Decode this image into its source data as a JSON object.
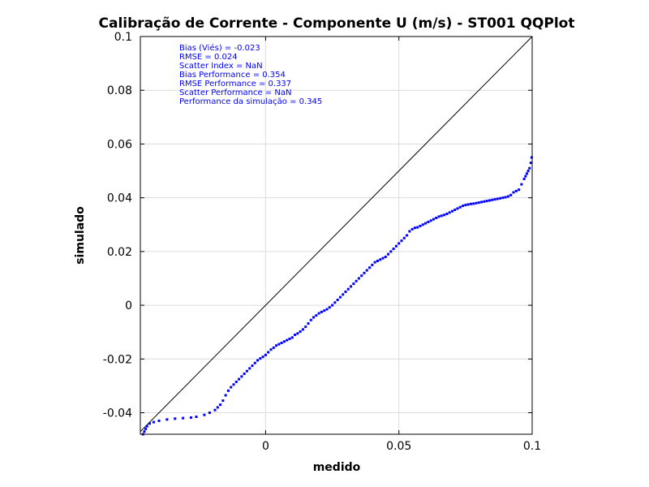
{
  "chart_data": {
    "type": "scatter",
    "title": "Calibração de Corrente - Componente U (m/s) - ST001 QQPlot",
    "xlabel": "medido",
    "ylabel": "simulado",
    "xlim": [
      -0.047,
      0.1
    ],
    "ylim": [
      -0.048,
      0.1
    ],
    "xticks": [
      0,
      0.05,
      0.1
    ],
    "xtick_labels": [
      "0",
      "0.05",
      "0.1"
    ],
    "yticks": [
      -0.04,
      -0.02,
      0,
      0.02,
      0.04,
      0.06,
      0.08,
      0.1
    ],
    "ytick_labels": [
      "-0.04",
      "-0.02",
      "0",
      "0.02",
      "0.04",
      "0.06",
      "0.08",
      "0.1"
    ],
    "grid": true,
    "reference_line": {
      "name": "",
      "color": "#000000",
      "x": [
        -0.047,
        0.1
      ],
      "y": [
        -0.047,
        0.1
      ]
    },
    "series": [
      {
        "color": "#0000ff",
        "marker": "dot",
        "points": [
          [
            -0.046,
            -0.048
          ],
          [
            -0.0455,
            -0.047
          ],
          [
            -0.045,
            -0.046
          ],
          [
            -0.0445,
            -0.045
          ],
          [
            -0.0435,
            -0.044
          ],
          [
            -0.042,
            -0.0435
          ],
          [
            -0.04,
            -0.043
          ],
          [
            -0.037,
            -0.0425
          ],
          [
            -0.034,
            -0.0422
          ],
          [
            -0.031,
            -0.042
          ],
          [
            -0.028,
            -0.0418
          ],
          [
            -0.026,
            -0.0415
          ],
          [
            -0.023,
            -0.0408
          ],
          [
            -0.021,
            -0.04
          ],
          [
            -0.019,
            -0.039
          ],
          [
            -0.018,
            -0.038
          ],
          [
            -0.017,
            -0.037
          ],
          [
            -0.016,
            -0.0355
          ],
          [
            -0.015,
            -0.0335
          ],
          [
            -0.014,
            -0.0318
          ],
          [
            -0.013,
            -0.0305
          ],
          [
            -0.012,
            -0.0295
          ],
          [
            -0.011,
            -0.0285
          ],
          [
            -0.01,
            -0.0275
          ],
          [
            -0.009,
            -0.0265
          ],
          [
            -0.008,
            -0.0255
          ],
          [
            -0.007,
            -0.0245
          ],
          [
            -0.006,
            -0.0235
          ],
          [
            -0.005,
            -0.0225
          ],
          [
            -0.004,
            -0.0215
          ],
          [
            -0.003,
            -0.0205
          ],
          [
            -0.002,
            -0.0198
          ],
          [
            -0.001,
            -0.0192
          ],
          [
            0.0,
            -0.0185
          ],
          [
            0.001,
            -0.0175
          ],
          [
            0.002,
            -0.0165
          ],
          [
            0.003,
            -0.0158
          ],
          [
            0.004,
            -0.015
          ],
          [
            0.005,
            -0.0145
          ],
          [
            0.006,
            -0.014
          ],
          [
            0.007,
            -0.0135
          ],
          [
            0.008,
            -0.013
          ],
          [
            0.009,
            -0.0125
          ],
          [
            0.01,
            -0.012
          ],
          [
            0.011,
            -0.011
          ],
          [
            0.012,
            -0.0105
          ],
          [
            0.013,
            -0.0098
          ],
          [
            0.014,
            -0.009
          ],
          [
            0.015,
            -0.008
          ],
          [
            0.016,
            -0.0068
          ],
          [
            0.017,
            -0.0055
          ],
          [
            0.018,
            -0.0045
          ],
          [
            0.019,
            -0.0038
          ],
          [
            0.02,
            -0.003
          ],
          [
            0.021,
            -0.0025
          ],
          [
            0.022,
            -0.002
          ],
          [
            0.023,
            -0.0015
          ],
          [
            0.024,
            -0.0008
          ],
          [
            0.025,
            0.0
          ],
          [
            0.026,
            0.001
          ],
          [
            0.027,
            0.002
          ],
          [
            0.028,
            0.003
          ],
          [
            0.029,
            0.004
          ],
          [
            0.03,
            0.005
          ],
          [
            0.031,
            0.006
          ],
          [
            0.032,
            0.007
          ],
          [
            0.033,
            0.008
          ],
          [
            0.034,
            0.009
          ],
          [
            0.035,
            0.01
          ],
          [
            0.036,
            0.011
          ],
          [
            0.037,
            0.012
          ],
          [
            0.038,
            0.013
          ],
          [
            0.039,
            0.014
          ],
          [
            0.04,
            0.015
          ],
          [
            0.041,
            0.016
          ],
          [
            0.042,
            0.0165
          ],
          [
            0.043,
            0.017
          ],
          [
            0.044,
            0.0175
          ],
          [
            0.045,
            0.018
          ],
          [
            0.046,
            0.019
          ],
          [
            0.047,
            0.02
          ],
          [
            0.048,
            0.021
          ],
          [
            0.049,
            0.022
          ],
          [
            0.05,
            0.023
          ],
          [
            0.051,
            0.024
          ],
          [
            0.052,
            0.025
          ],
          [
            0.053,
            0.026
          ],
          [
            0.054,
            0.0275
          ],
          [
            0.055,
            0.0283
          ],
          [
            0.056,
            0.0288
          ],
          [
            0.057,
            0.029
          ],
          [
            0.058,
            0.0295
          ],
          [
            0.059,
            0.03
          ],
          [
            0.06,
            0.0305
          ],
          [
            0.061,
            0.031
          ],
          [
            0.062,
            0.0315
          ],
          [
            0.063,
            0.032
          ],
          [
            0.064,
            0.0325
          ],
          [
            0.065,
            0.033
          ],
          [
            0.066,
            0.0333
          ],
          [
            0.067,
            0.0336
          ],
          [
            0.068,
            0.034
          ],
          [
            0.069,
            0.0345
          ],
          [
            0.07,
            0.035
          ],
          [
            0.071,
            0.0355
          ],
          [
            0.072,
            0.036
          ],
          [
            0.073,
            0.0365
          ],
          [
            0.074,
            0.037
          ],
          [
            0.075,
            0.0373
          ],
          [
            0.076,
            0.0375
          ],
          [
            0.077,
            0.0377
          ],
          [
            0.078,
            0.0378
          ],
          [
            0.079,
            0.038
          ],
          [
            0.08,
            0.0382
          ],
          [
            0.081,
            0.0384
          ],
          [
            0.082,
            0.0386
          ],
          [
            0.083,
            0.0388
          ],
          [
            0.084,
            0.039
          ],
          [
            0.085,
            0.0392
          ],
          [
            0.086,
            0.0394
          ],
          [
            0.087,
            0.0396
          ],
          [
            0.088,
            0.0398
          ],
          [
            0.089,
            0.04
          ],
          [
            0.09,
            0.0402
          ],
          [
            0.091,
            0.0405
          ],
          [
            0.092,
            0.041
          ],
          [
            0.093,
            0.042
          ],
          [
            0.094,
            0.0425
          ],
          [
            0.095,
            0.043
          ],
          [
            0.096,
            0.045
          ],
          [
            0.097,
            0.047
          ],
          [
            0.0975,
            0.048
          ],
          [
            0.098,
            0.049
          ],
          [
            0.0985,
            0.05
          ],
          [
            0.099,
            0.051
          ],
          [
            0.0995,
            0.053
          ],
          [
            0.0998,
            0.055
          ]
        ]
      }
    ],
    "annotations": [
      "Bias (Viés) = -0.023",
      "RMSE = 0.024",
      "Scatter Index = NaN",
      "Bias Performance = 0.354",
      "RMSE Performance = 0.337",
      "Scatter Performance = NaN",
      "Performance da simulação = 0.345"
    ]
  }
}
